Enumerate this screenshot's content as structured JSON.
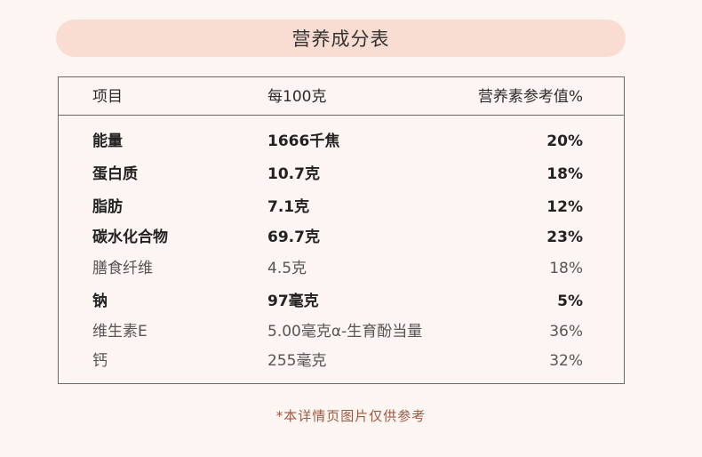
{
  "title": "营养成分表",
  "header": {
    "item": "项目",
    "per100": "每100克",
    "nrv": "营养素参考值%"
  },
  "rows": [
    {
      "item": "能量",
      "value": "1666千焦",
      "nrv": "20%",
      "bold": true
    },
    {
      "item": "蛋白质",
      "value": "10.7克",
      "nrv": "18%",
      "bold": true
    },
    {
      "item": "脂肪",
      "value": "7.1克",
      "nrv": "12%",
      "bold": true
    },
    {
      "item": "碳水化合物",
      "value": "69.7克",
      "nrv": "23%",
      "bold": true
    },
    {
      "item": "膳食纤维",
      "value": "4.5克",
      "nrv": "18%",
      "bold": false
    },
    {
      "item": "钠",
      "value": "97毫克",
      "nrv": "5%",
      "bold": true
    },
    {
      "item": "维生素E",
      "value": "5.00毫克α-生育酚当量",
      "nrv": "36%",
      "bold": false
    },
    {
      "item": "钙",
      "value": "255毫克",
      "nrv": "32%",
      "bold": false
    }
  ],
  "note": "*本详情页图片仅供参考"
}
